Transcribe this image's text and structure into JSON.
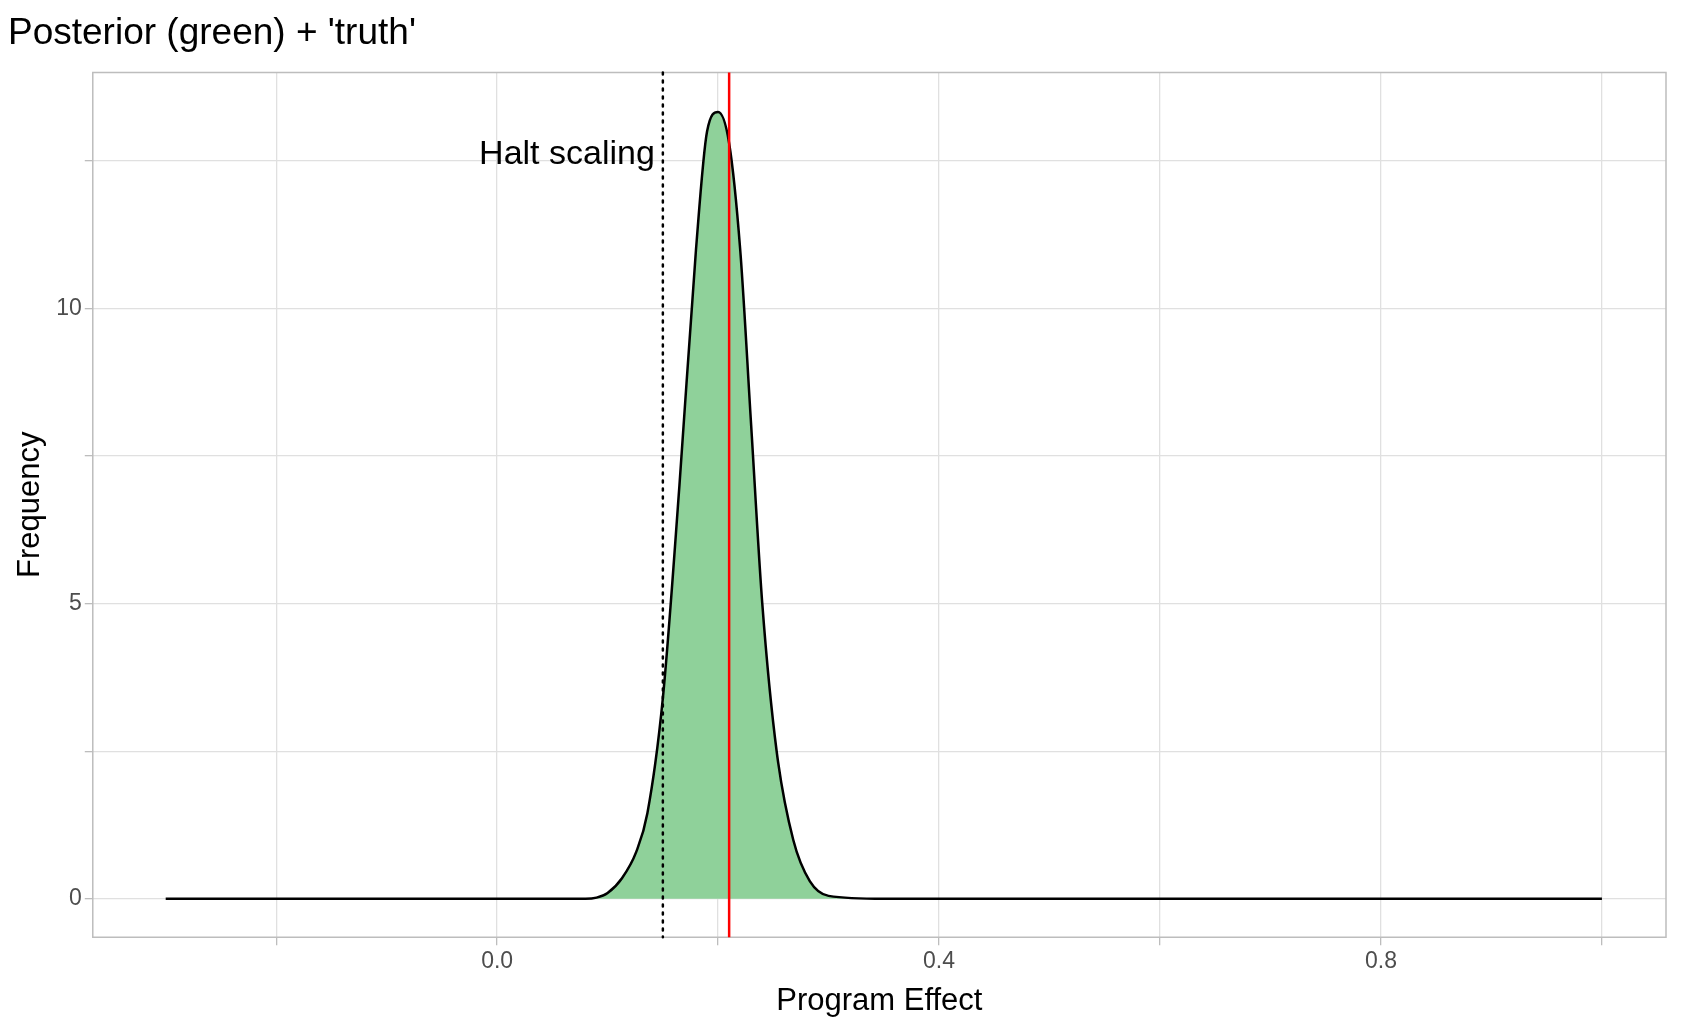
{
  "chart_data": {
    "type": "area",
    "title": "Posterior (green) + 'truth'",
    "xlabel": "Program Effect",
    "ylabel": "Frequency",
    "xlim": [
      -0.366,
      1.058
    ],
    "ylim": [
      -0.65,
      14.0
    ],
    "xticks": [
      {
        "value": -0.2,
        "label": null
      },
      {
        "value": 0.0,
        "label": "0.0"
      },
      {
        "value": 0.2,
        "label": null
      },
      {
        "value": 0.4,
        "label": "0.4"
      },
      {
        "value": 0.6,
        "label": null
      },
      {
        "value": 0.8,
        "label": "0.8"
      },
      {
        "value": 1.0,
        "label": null
      }
    ],
    "yticks": [
      0,
      {
        "value": 2.5,
        "label": null
      },
      5,
      {
        "value": 7.5,
        "label": null
      },
      10,
      {
        "value": 12.5,
        "label": null
      }
    ],
    "grid": true,
    "legend": false,
    "series": [
      {
        "color": "#8fd19a",
        "x": [
          -0.3,
          0.0,
          0.08,
          0.09,
          0.1,
          0.113,
          0.126,
          0.136,
          0.15,
          0.165,
          0.18,
          0.19,
          0.2,
          0.21,
          0.22,
          0.23,
          0.24,
          0.253,
          0.268,
          0.283,
          0.3,
          0.35,
          0.6,
          1.0
        ],
        "values": [
          0,
          0,
          0,
          0.02,
          0.1,
          0.35,
          0.8,
          1.45,
          3.4,
          7,
          11,
          13,
          13.33,
          12.8,
          11,
          8,
          5,
          2.5,
          1,
          0.3,
          0.05,
          0,
          0,
          0
        ]
      }
    ],
    "ref_lines": [
      {
        "axis": "x",
        "value": 0.15,
        "label": "Halt scaling",
        "color": "#000000",
        "line_style": "dotted"
      },
      {
        "axis": "x",
        "value": 0.21,
        "color": "#ff0000",
        "line_style": "solid"
      }
    ]
  }
}
